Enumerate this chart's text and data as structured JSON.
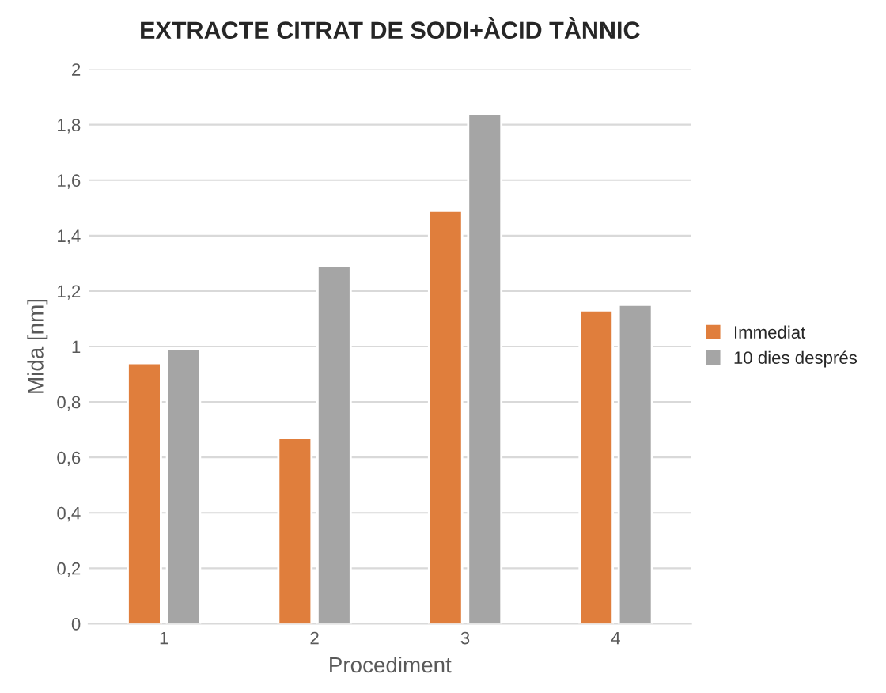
{
  "chart_data": {
    "type": "bar",
    "title": "EXTRACTE CITRAT DE SODI+ÀCID TÀNNIC",
    "xlabel": "Procediment",
    "ylabel": "Mida [nm]",
    "categories": [
      "1",
      "2",
      "3",
      "4"
    ],
    "series": [
      {
        "name": "Immediat",
        "color": "#e07e3c",
        "values": [
          0.94,
          0.67,
          1.49,
          1.13
        ]
      },
      {
        "name": "10 dies després",
        "color": "#a5a5a5",
        "values": [
          0.99,
          1.29,
          1.84,
          1.15
        ]
      }
    ],
    "ylim": [
      0,
      2
    ],
    "yticks": [
      0,
      {
        "value": 0.2,
        "label": "0,2"
      },
      {
        "value": 0.4,
        "label": "0,4"
      },
      {
        "value": 0.6,
        "label": "0,6"
      },
      {
        "value": 0.8,
        "label": "0,8"
      },
      1,
      {
        "value": 1.2,
        "label": "1,2"
      },
      {
        "value": 1.4,
        "label": "1,4"
      },
      {
        "value": 1.6,
        "label": "1,6"
      },
      {
        "value": 1.8,
        "label": "1,8"
      },
      2
    ],
    "grid": "y",
    "legend": "right"
  }
}
